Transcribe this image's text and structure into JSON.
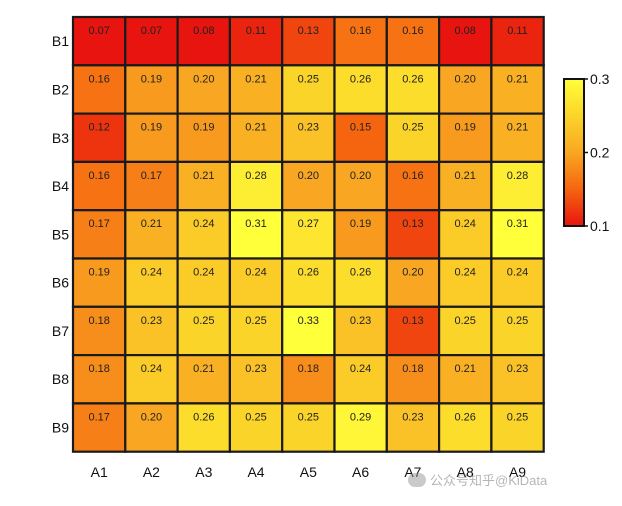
{
  "chart_data": {
    "type": "heatmap",
    "title": "",
    "xlabel": "",
    "ylabel": "",
    "x_categories": [
      "A1",
      "A2",
      "A3",
      "A4",
      "A5",
      "A6",
      "A7",
      "A8",
      "A9"
    ],
    "y_categories": [
      "B1",
      "B2",
      "B3",
      "B4",
      "B5",
      "B6",
      "B7",
      "B8",
      "B9"
    ],
    "values": [
      [
        "0.07",
        "0.07",
        "0.08",
        "0.11",
        "0.13",
        "0.16",
        "0.16",
        "0.08",
        "0.11"
      ],
      [
        "0.16",
        "0.19",
        "0.20",
        "0.21",
        "0.25",
        "0.26",
        "0.26",
        "0.20",
        "0.21"
      ],
      [
        "0.12",
        "0.19",
        "0.19",
        "0.21",
        "0.23",
        "0.15",
        "0.25",
        "0.19",
        "0.21"
      ],
      [
        "0.16",
        "0.17",
        "0.21",
        "0.28",
        "0.20",
        "0.20",
        "0.16",
        "0.21",
        "0.28"
      ],
      [
        "0.17",
        "0.21",
        "0.24",
        "0.31",
        "0.27",
        "0.19",
        "0.13",
        "0.24",
        "0.31"
      ],
      [
        "0.19",
        "0.24",
        "0.24",
        "0.24",
        "0.26",
        "0.26",
        "0.20",
        "0.24",
        "0.24"
      ],
      [
        "0.18",
        "0.23",
        "0.25",
        "0.25",
        "0.33",
        "0.23",
        "0.13",
        "0.25",
        "0.25"
      ],
      [
        "0.18",
        "0.24",
        "0.21",
        "0.23",
        "0.18",
        "0.24",
        "0.18",
        "0.21",
        "0.23"
      ],
      [
        "0.17",
        "0.20",
        "0.26",
        "0.25",
        "0.25",
        "0.29",
        "0.23",
        "0.26",
        "0.25"
      ]
    ],
    "colorbar": {
      "ticks": [
        "0.3",
        "0.2",
        "0.1"
      ],
      "range": [
        0.1,
        0.3
      ],
      "colormap": [
        "#e8140f",
        "#f5650f",
        "#f9a722",
        "#fbd429",
        "#ffff3a"
      ]
    },
    "cell_border_color": "#1a1a1a",
    "label_color": "#222222"
  },
  "watermark": {
    "text": "公众号知乎@KiData"
  }
}
